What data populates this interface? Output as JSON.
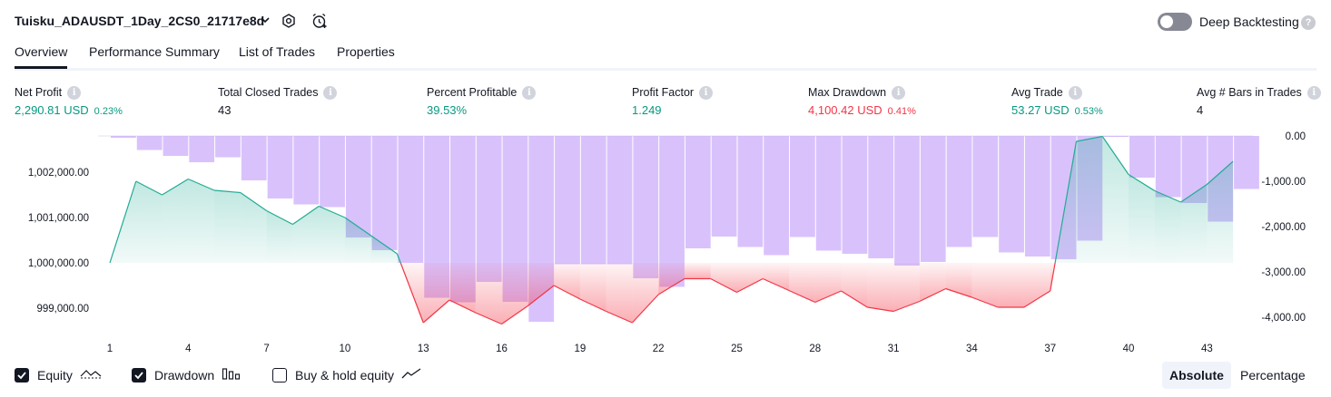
{
  "header": {
    "strategy_name": "Tuisku_ADAUSDT_1Day_2CS0_21717e8d",
    "deep_backtesting_label": "Deep Backtesting",
    "deep_backtesting_on": false
  },
  "tabs": [
    {
      "label": "Overview",
      "active": true
    },
    {
      "label": "Performance Summary",
      "active": false
    },
    {
      "label": "List of Trades",
      "active": false
    },
    {
      "label": "Properties",
      "active": false
    }
  ],
  "stats": [
    {
      "label": "Net Profit",
      "value": "2,290.81 USD",
      "pct": "0.23%",
      "tone": "green"
    },
    {
      "label": "Total Closed Trades",
      "value": "43",
      "pct": "",
      "tone": "neutral"
    },
    {
      "label": "Percent Profitable",
      "value": "39.53%",
      "pct": "",
      "tone": "green"
    },
    {
      "label": "Profit Factor",
      "value": "1.249",
      "pct": "",
      "tone": "green"
    },
    {
      "label": "Max Drawdown",
      "value": "4,100.42 USD",
      "pct": "0.41%",
      "tone": "red"
    },
    {
      "label": "Avg Trade",
      "value": "53.27 USD",
      "pct": "0.53%",
      "tone": "green"
    },
    {
      "label": "Avg # Bars in Trades",
      "value": "4",
      "pct": "",
      "tone": "neutral"
    }
  ],
  "chart_data": {
    "type": "line",
    "x_ticks": [
      "1",
      "4",
      "7",
      "10",
      "13",
      "16",
      "19",
      "22",
      "25",
      "28",
      "31",
      "34",
      "37",
      "40",
      "43"
    ],
    "y_left_ticks": [
      "1,002,000.00",
      "1,001,000.00",
      "1,000,000.00",
      "999,000.00"
    ],
    "y_left_values": [
      1002000,
      1001000,
      1000000,
      999000
    ],
    "y_right_ticks": [
      "0.00",
      "-1,000.00",
      "-2,000.00",
      "-3,000.00",
      "-4,000.00"
    ],
    "y_right_values": [
      0,
      -1000,
      -2000,
      -3000,
      -4000
    ],
    "y_left_range": [
      998600,
      1002800
    ],
    "y_right_range": [
      -4200,
      0
    ],
    "equity_baseline": 1000000,
    "series": [
      {
        "name": "Equity",
        "x": [
          1,
          2,
          3,
          4,
          5,
          6,
          7,
          8,
          9,
          10,
          11,
          12,
          13,
          14,
          15,
          16,
          17,
          18,
          19,
          20,
          21,
          22,
          23,
          24,
          25,
          26,
          27,
          28,
          29,
          30,
          31,
          32,
          33,
          34,
          35,
          36,
          37,
          38,
          39,
          40,
          41,
          42,
          43,
          44
        ],
        "values": [
          1000000,
          1001800,
          1001500,
          1001850,
          1001600,
          1001550,
          1001150,
          1000850,
          1001250,
          1001000,
          1000600,
          1000200,
          998680,
          999180,
          998900,
          998650,
          999050,
          999500,
          999200,
          998930,
          998680,
          999300,
          999650,
          999650,
          999350,
          999650,
          999390,
          999130,
          999380,
          999020,
          998930,
          999150,
          999430,
          999240,
          999020,
          999020,
          999380,
          1002680,
          1002790,
          1001950,
          1001590,
          1001340,
          1001730,
          1002240
        ],
        "color_up": "#22ab94",
        "color_down": "#f23645"
      },
      {
        "name": "Drawdown",
        "x": [
          1,
          2,
          3,
          4,
          5,
          6,
          7,
          8,
          9,
          10,
          11,
          12,
          13,
          14,
          15,
          16,
          17,
          18,
          19,
          20,
          21,
          22,
          23,
          24,
          25,
          26,
          27,
          28,
          29,
          30,
          31,
          32,
          33,
          34,
          35,
          36,
          37,
          38,
          39,
          40,
          41,
          42,
          43,
          44
        ],
        "values": [
          -40,
          -310,
          -440,
          -580,
          -470,
          -980,
          -1380,
          -1510,
          -1570,
          -2240,
          -2520,
          -2800,
          -3570,
          -3670,
          -3220,
          -3660,
          -4100,
          -2830,
          -2830,
          -2830,
          -3140,
          -3330,
          -2480,
          -2220,
          -2450,
          -2630,
          -2230,
          -2530,
          -2600,
          -2700,
          -2860,
          -2780,
          -2450,
          -2230,
          -2570,
          -2660,
          -2720,
          -2310,
          0,
          -920,
          -1350,
          -1480,
          -1890,
          -1170
        ],
        "color": "#c29cfa"
      }
    ],
    "legend": [
      {
        "label": "Equity",
        "checked": true,
        "icon": "equity-line-icon"
      },
      {
        "label": "Drawdown",
        "checked": true,
        "icon": "drawdown-bars-icon"
      },
      {
        "label": "Buy & hold equity",
        "checked": false,
        "icon": "buy-hold-line-icon"
      }
    ]
  },
  "scale_toggle": {
    "absolute_label": "Absolute",
    "percentage_label": "Percentage",
    "selected": "absolute"
  },
  "colors": {
    "equity_green": "#22ab94",
    "drawdown_purple": "#c29cfa",
    "loss_red": "#f23645",
    "text": "#131722"
  }
}
